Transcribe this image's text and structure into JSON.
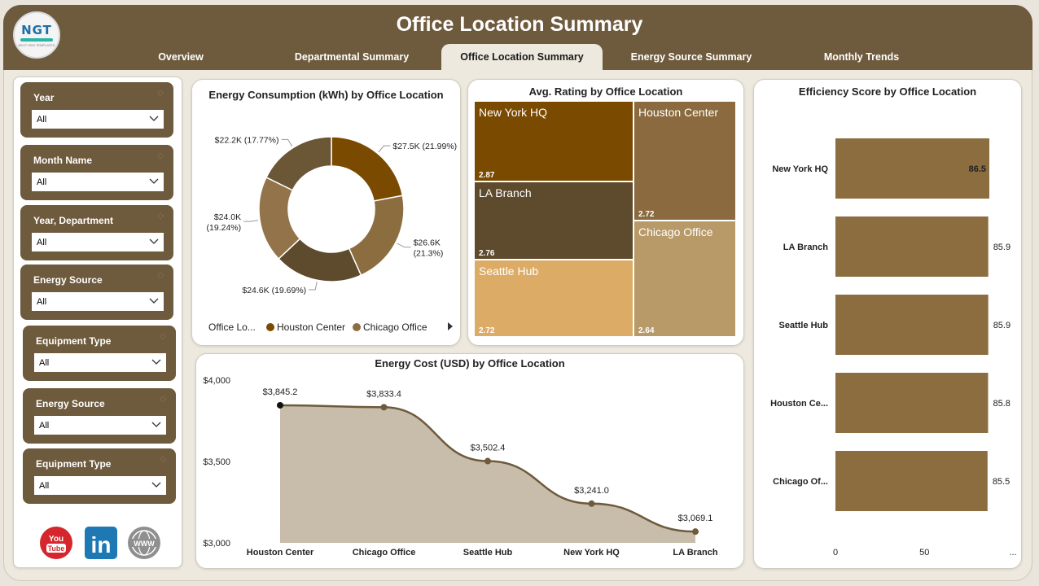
{
  "header": {
    "title": "Office Location Summary",
    "logo_text": "NGT",
    "logo_sub": "NEXT GEN TEMPLATES",
    "tabs": [
      {
        "label": "Overview",
        "active": false
      },
      {
        "label": "Departmental Summary",
        "active": false
      },
      {
        "label": "Office Location Summary",
        "active": true
      },
      {
        "label": "Energy Source Summary",
        "active": false
      },
      {
        "label": "Monthly Trends",
        "active": false
      }
    ]
  },
  "filters": [
    {
      "label": "Year",
      "value": "All"
    },
    {
      "label": "Month Name",
      "value": "All"
    },
    {
      "label": "Year, Department",
      "value": "All"
    },
    {
      "label": "Energy Source",
      "value": "All"
    },
    {
      "label": "Equipment Type",
      "value": "All"
    },
    {
      "label": "Energy Source",
      "value": "All"
    },
    {
      "label": "Equipment Type",
      "value": "All"
    }
  ],
  "social": {
    "youtube": "You Tube",
    "linkedin": "in",
    "web": "WWW"
  },
  "colors": {
    "header": "#6e5a3c",
    "accent_dark": "#7a4a00",
    "accent_mid": "#8c6d3f",
    "accent_light": "#dcac67"
  },
  "chart_data": [
    {
      "type": "pie",
      "title": "Energy Consumption (kWh) by Office Location",
      "donut": true,
      "slices": [
        {
          "label": "$27.5K (21.99%)",
          "value": 21.99,
          "color": "#7a4a00"
        },
        {
          "label": "$26.6K (21.3%)",
          "value": 21.3,
          "color": "#8c6d3f"
        },
        {
          "label": "$24.6K (19.69%)",
          "value": 19.69,
          "color": "#5e4a2d"
        },
        {
          "label": "$24.0K (19.24%)",
          "value": 19.24,
          "color": "#93744a"
        },
        {
          "label": "$22.2K (17.77%)",
          "value": 17.77,
          "color": "#6b5636"
        }
      ],
      "legend_title": "Office Lo...",
      "legend": [
        {
          "name": "Houston Center",
          "color": "#7a4a00"
        },
        {
          "name": "Chicago Office",
          "color": "#8c6d3f"
        }
      ]
    },
    {
      "type": "heatmap",
      "title": "Avg. Rating by Office Location",
      "tiles": [
        {
          "name": "New York HQ",
          "value": "2.87",
          "color": "#7a4a00"
        },
        {
          "name": "Houston Center",
          "value": "2.72",
          "color": "#8a6a3e"
        },
        {
          "name": "LA Branch",
          "value": "2.76",
          "color": "#5e4a2d"
        },
        {
          "name": "Chicago Office",
          "value": "2.64",
          "color": "#b89a68"
        },
        {
          "name": "Seattle Hub",
          "value": "2.72",
          "color": "#dcac67"
        }
      ]
    },
    {
      "type": "bar",
      "orientation": "horizontal",
      "title": "Efficiency Score by Office Location",
      "categories": [
        "New York HQ",
        "LA Branch",
        "Seattle Hub",
        "Houston Ce...",
        "Chicago Of..."
      ],
      "values": [
        86.5,
        85.9,
        85.9,
        85.8,
        85.5
      ],
      "value_labels": [
        "86.5",
        "85.9",
        "85.9",
        "85.8",
        "85.5"
      ],
      "x_ticks": [
        "0",
        "50",
        "..."
      ],
      "bar_color": "#8c6d3f"
    },
    {
      "type": "area",
      "title": "Energy Cost (USD) by Office Location",
      "categories": [
        "Houston Center",
        "Chicago Office",
        "Seattle Hub",
        "New York HQ",
        "LA Branch"
      ],
      "values": [
        3845.2,
        3833.4,
        3502.4,
        3241.0,
        3069.1
      ],
      "value_labels": [
        "$3,845.2",
        "$3,833.4",
        "$3,502.4",
        "$3,241.0",
        "$3,069.1"
      ],
      "y_ticks": [
        "$4,000",
        "$3,500",
        "$3,000"
      ],
      "ylim": [
        3000,
        4000
      ],
      "line_color": "#6e5a3c",
      "fill_color": "#c7bdaa"
    }
  ]
}
